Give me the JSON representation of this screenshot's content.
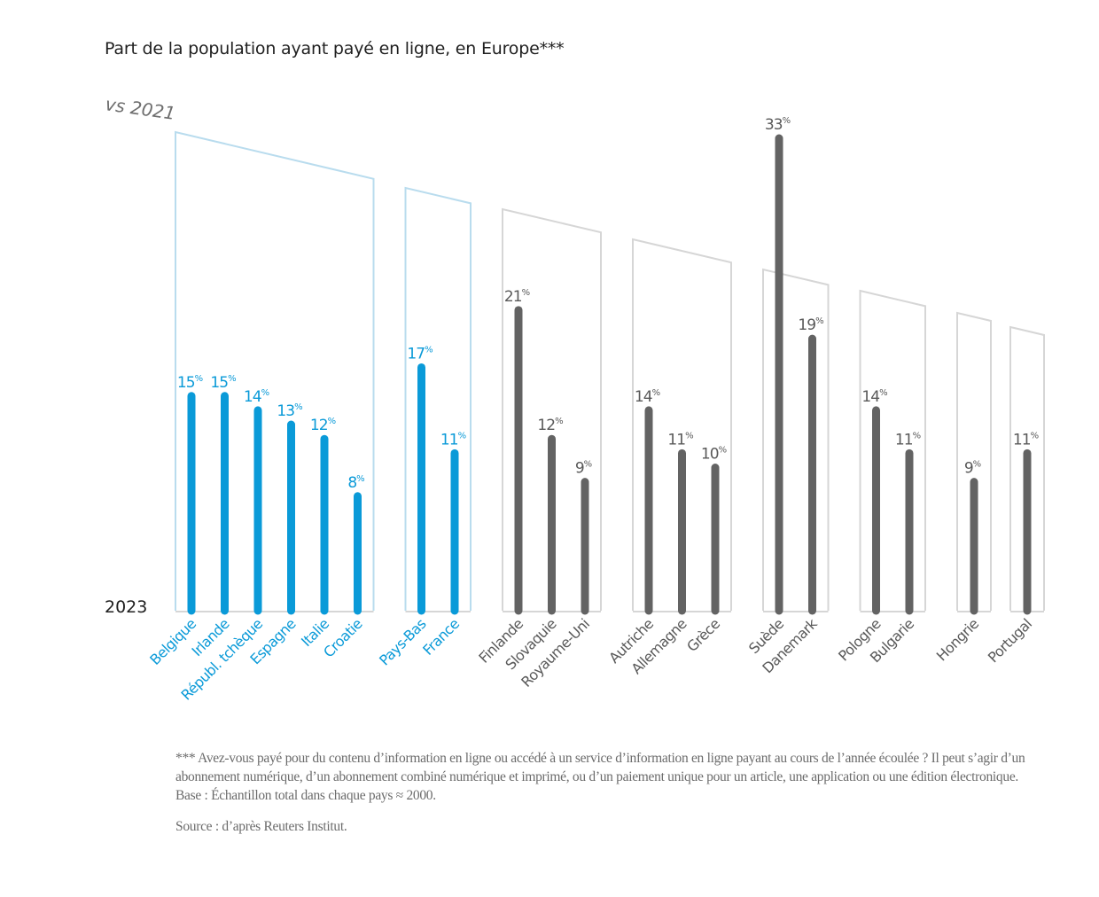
{
  "title": "Part de la population ayant payé en ligne, en Europe***",
  "footnote": "*** Avez-vous payé pour du contenu d’information en ligne ou accédé à un service d’information en ligne payant au cours de l’année écoulée ? Il peut s’agir d’un abonnement numérique, d’un abonnement combiné numérique et imprimé, ou d’un paiement unique pour un article, une application ou une édition électronique. Base : Échantillon total dans chaque pays ≈ 2000.",
  "source": "Source : d’après Reuters Institut.",
  "colors": {
    "highlight_bar": "#0a9ad8",
    "highlight_bracket": "#b9dcee",
    "default_bar": "#636363",
    "default_bracket": "#d6d6d6",
    "label_text": "#595959",
    "axis_line": "#d6d6d6"
  },
  "chart_data": {
    "type": "bar",
    "title": "Part de la population ayant payé en ligne, en Europe***",
    "xlabel": "",
    "ylabel": "",
    "baseline_label": "2023",
    "change_axis_label": "vs 2021",
    "value_suffix": "%",
    "ylim": [
      0,
      35
    ],
    "grid": false,
    "groups": [
      {
        "change": "+1",
        "highlight": true,
        "countries": [
          "Belgique",
          "Irlande",
          "Républ. tchèque",
          "Espagne",
          "Italie",
          "Croatie"
        ],
        "values": [
          15,
          15,
          14,
          13,
          12,
          8
        ]
      },
      {
        "change": "0",
        "highlight": true,
        "countries": [
          "Pays-Bas",
          "France"
        ],
        "values": [
          17,
          11
        ]
      },
      {
        "change": "-1",
        "highlight": false,
        "countries": [
          "Finlande",
          "Slovaquie",
          "Royaume-Uni"
        ],
        "values": [
          21,
          12,
          9
        ]
      },
      {
        "change": "-2",
        "highlight": false,
        "countries": [
          "Autriche",
          "Allemagne",
          "Grèce"
        ],
        "values": [
          14,
          11,
          10
        ]
      },
      {
        "change": "-3",
        "highlight": false,
        "countries": [
          "Suède",
          "Danemark"
        ],
        "values": [
          33,
          19
        ]
      },
      {
        "change": "-4",
        "highlight": false,
        "countries": [
          "Pologne",
          "Bulgarie"
        ],
        "values": [
          14,
          11
        ]
      },
      {
        "change": "-5",
        "highlight": false,
        "countries": [
          "Hongrie"
        ],
        "values": [
          9
        ]
      },
      {
        "change": "-6",
        "highlight": false,
        "countries": [
          "Portugal"
        ],
        "values": [
          11
        ]
      }
    ]
  }
}
